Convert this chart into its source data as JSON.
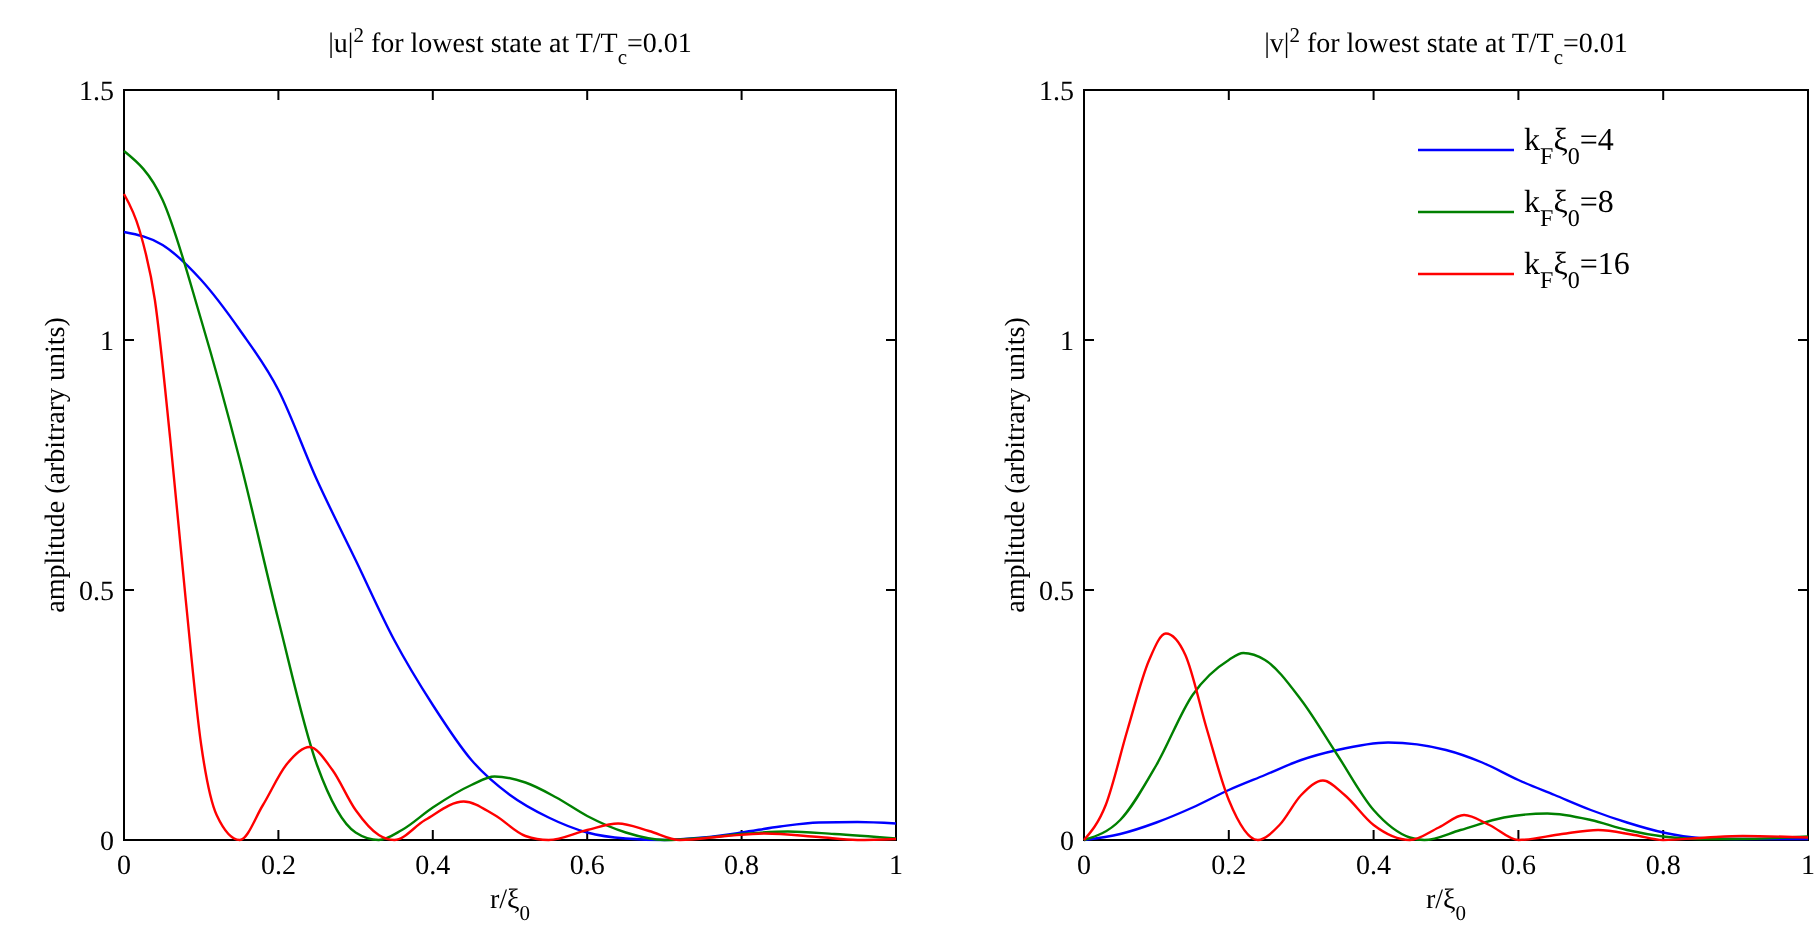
{
  "chart_data": [
    {
      "type": "line",
      "title": "|u|$^{2}$ for lowest state at T/T$_{c}$=0.01",
      "xlabel": "r/ξ$_{0}$",
      "ylabel": "amplitude (arbitrary units)",
      "xlim": [
        0,
        1
      ],
      "ylim": [
        0,
        1.5
      ],
      "xticks": [
        0,
        0.2,
        0.4,
        0.6,
        0.8,
        1
      ],
      "yticks": [
        0,
        0.5,
        1,
        1.5
      ],
      "legend": false,
      "series": [
        {
          "color": "#0000ff",
          "x": [
            0,
            0.05,
            0.1,
            0.15,
            0.2,
            0.25,
            0.3,
            0.35,
            0.4,
            0.45,
            0.5,
            0.55,
            0.6,
            0.65,
            0.7,
            0.75,
            0.8,
            0.85,
            0.9,
            0.95,
            1
          ],
          "values": [
            1.216,
            1.19,
            1.12,
            1.02,
            0.9,
            0.72,
            0.56,
            0.4,
            0.27,
            0.16,
            0.09,
            0.045,
            0.015,
            0.003,
            0,
            0.005,
            0.015,
            0.027,
            0.035,
            0.036,
            0.033
          ]
        },
        {
          "color": "#008000",
          "x": [
            0,
            0.05,
            0.1,
            0.15,
            0.2,
            0.25,
            0.3,
            0.33,
            0.36,
            0.4,
            0.45,
            0.48,
            0.52,
            0.56,
            0.6,
            0.65,
            0.7,
            0.75,
            0.8,
            0.86,
            0.92,
            1
          ],
          "values": [
            1.378,
            1.28,
            1.04,
            0.76,
            0.44,
            0.15,
            0.015,
            0,
            0.02,
            0.065,
            0.11,
            0.127,
            0.115,
            0.085,
            0.048,
            0.015,
            0,
            0.004,
            0.012,
            0.017,
            0.012,
            0.003
          ]
        },
        {
          "color": "#ff0000",
          "x": [
            0,
            0.02,
            0.04,
            0.06,
            0.08,
            0.1,
            0.12,
            0.15,
            0.18,
            0.21,
            0.24,
            0.27,
            0.3,
            0.33,
            0.35,
            0.39,
            0.44,
            0.48,
            0.52,
            0.55,
            0.6,
            0.64,
            0.68,
            0.72,
            0.78,
            0.83,
            0.9,
            0.95,
            1
          ],
          "values": [
            1.292,
            1.22,
            1.08,
            0.8,
            0.48,
            0.19,
            0.05,
            0,
            0.07,
            0.15,
            0.186,
            0.14,
            0.06,
            0.01,
            0,
            0.04,
            0.077,
            0.05,
            0.008,
            0,
            0.02,
            0.033,
            0.018,
            0,
            0.008,
            0.013,
            0.006,
            0,
            0.002
          ]
        }
      ]
    },
    {
      "type": "line",
      "title": "|v|$^{2}$ for lowest state at T/T$_{c}$=0.01",
      "xlabel": "r/ξ$_{0}$",
      "ylabel": "amplitude (arbitrary units)",
      "xlim": [
        0,
        1
      ],
      "ylim": [
        0,
        1.5
      ],
      "xticks": [
        0,
        0.2,
        0.4,
        0.6,
        0.8,
        1
      ],
      "yticks": [
        0,
        0.5,
        1,
        1.5
      ],
      "legend": "top right",
      "series": [
        {
          "name": "k$_{F}$ξ$_{0}$=4",
          "color": "#0000ff",
          "x": [
            0,
            0.05,
            0.1,
            0.15,
            0.2,
            0.25,
            0.3,
            0.35,
            0.42,
            0.5,
            0.55,
            0.6,
            0.65,
            0.7,
            0.75,
            0.8,
            0.85,
            0.9,
            1
          ],
          "values": [
            0,
            0.012,
            0.035,
            0.065,
            0.1,
            0.13,
            0.16,
            0.18,
            0.195,
            0.18,
            0.155,
            0.12,
            0.09,
            0.06,
            0.035,
            0.015,
            0.004,
            0.002,
            0.002
          ]
        },
        {
          "name": "k$_{F}$ξ$_{0}$=8",
          "color": "#008000",
          "x": [
            0,
            0.05,
            0.1,
            0.15,
            0.2,
            0.22,
            0.25,
            0.3,
            0.35,
            0.4,
            0.45,
            0.47,
            0.52,
            0.58,
            0.64,
            0.7,
            0.75,
            0.8,
            0.85,
            0.9,
            1
          ],
          "values": [
            0,
            0.04,
            0.15,
            0.29,
            0.36,
            0.374,
            0.36,
            0.28,
            0.17,
            0.06,
            0.005,
            0,
            0.02,
            0.045,
            0.053,
            0.04,
            0.02,
            0.007,
            0.002,
            0.002,
            0.007
          ]
        },
        {
          "name": "k$_{F}$ξ$_{0}$=16",
          "color": "#ff0000",
          "x": [
            0,
            0.03,
            0.06,
            0.09,
            0.113,
            0.14,
            0.17,
            0.2,
            0.24,
            0.27,
            0.3,
            0.33,
            0.36,
            0.4,
            0.45,
            0.49,
            0.525,
            0.56,
            0.6,
            0.66,
            0.71,
            0.76,
            0.8,
            0.86,
            0.91,
            1
          ],
          "values": [
            0,
            0.07,
            0.22,
            0.36,
            0.413,
            0.37,
            0.22,
            0.08,
            0,
            0.03,
            0.09,
            0.119,
            0.09,
            0.03,
            0,
            0.025,
            0.05,
            0.03,
            0,
            0.012,
            0.02,
            0.01,
            0,
            0.005,
            0.008,
            0.005
          ]
        }
      ]
    }
  ]
}
